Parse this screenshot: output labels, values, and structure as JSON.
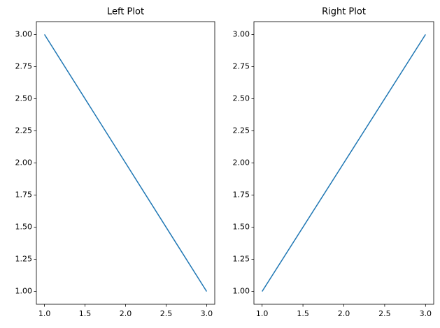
{
  "chart_data": [
    {
      "type": "line",
      "title": "Left Plot",
      "x": [
        1,
        2,
        3
      ],
      "values": [
        3,
        2,
        1
      ],
      "color": "#1f77b4",
      "xlim": [
        0.9,
        3.1
      ],
      "ylim": [
        0.9,
        3.1
      ],
      "xticks": [
        {
          "value": 1,
          "label": "1.0"
        },
        1.5,
        {
          "value": 2,
          "label": "2.0"
        },
        2.5,
        {
          "value": 3,
          "label": "3.0"
        }
      ],
      "yticks": [
        {
          "value": 1,
          "label": "1.00"
        },
        {
          "value": 1.25,
          "label": "1.25"
        },
        {
          "value": 1.5,
          "label": "1.50"
        },
        {
          "value": 1.75,
          "label": "1.75"
        },
        {
          "value": 2,
          "label": "2.00"
        },
        {
          "value": 2.25,
          "label": "2.25"
        },
        {
          "value": 2.5,
          "label": "2.50"
        },
        {
          "value": 2.75,
          "label": "2.75"
        },
        {
          "value": 3,
          "label": "3.00"
        }
      ],
      "grid": false
    },
    {
      "type": "line",
      "title": "Right Plot",
      "x": [
        1,
        2,
        3
      ],
      "values": [
        1,
        2,
        3
      ],
      "color": "#1f77b4",
      "xlim": [
        0.9,
        3.1
      ],
      "ylim": [
        0.9,
        3.1
      ],
      "xticks": [
        {
          "value": 1,
          "label": "1.0"
        },
        1.5,
        {
          "value": 2,
          "label": "2.0"
        },
        2.5,
        {
          "value": 3,
          "label": "3.0"
        }
      ],
      "yticks": [
        {
          "value": 1,
          "label": "1.00"
        },
        {
          "value": 1.25,
          "label": "1.25"
        },
        {
          "value": 1.5,
          "label": "1.50"
        },
        {
          "value": 1.75,
          "label": "1.75"
        },
        {
          "value": 2,
          "label": "2.00"
        },
        {
          "value": 2.25,
          "label": "2.25"
        },
        {
          "value": 2.5,
          "label": "2.50"
        },
        {
          "value": 2.75,
          "label": "2.75"
        },
        {
          "value": 3,
          "label": "3.00"
        }
      ],
      "grid": false
    }
  ]
}
